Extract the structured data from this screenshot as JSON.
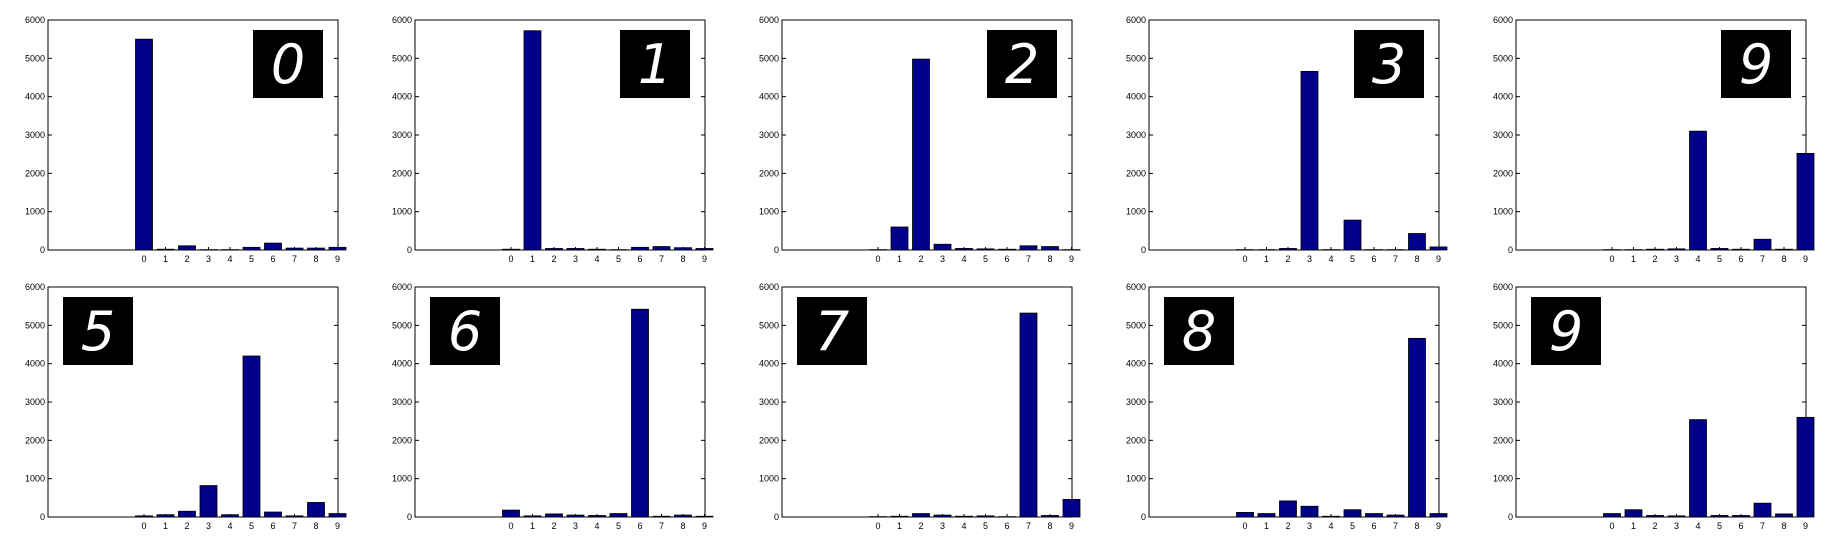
{
  "chart_data": [
    {
      "type": "bar",
      "categories": [
        "0",
        "1",
        "2",
        "3",
        "4",
        "5",
        "6",
        "7",
        "8",
        "9"
      ],
      "values": [
        5500,
        20,
        110,
        10,
        10,
        70,
        180,
        50,
        50,
        70
      ],
      "ylim": [
        0,
        6000
      ],
      "yticks": [
        0,
        1000,
        2000,
        3000,
        4000,
        5000,
        6000
      ],
      "inset_digit": "0",
      "inset_position": "top-right"
    },
    {
      "type": "bar",
      "categories": [
        "0",
        "1",
        "2",
        "3",
        "4",
        "5",
        "6",
        "7",
        "8",
        "9"
      ],
      "values": [
        20,
        5720,
        40,
        40,
        20,
        10,
        70,
        90,
        60,
        40
      ],
      "ylim": [
        0,
        6000
      ],
      "yticks": [
        0,
        1000,
        2000,
        3000,
        4000,
        5000,
        6000
      ],
      "inset_digit": "1",
      "inset_position": "top-right"
    },
    {
      "type": "bar",
      "categories": [
        "0",
        "1",
        "2",
        "3",
        "4",
        "5",
        "6",
        "7",
        "8",
        "9"
      ],
      "values": [
        10,
        600,
        4980,
        150,
        40,
        30,
        20,
        110,
        90,
        10
      ],
      "ylim": [
        0,
        6000
      ],
      "yticks": [
        0,
        1000,
        2000,
        3000,
        4000,
        5000,
        6000
      ],
      "inset_digit": "2",
      "inset_position": "top-right"
    },
    {
      "type": "bar",
      "categories": [
        "0",
        "1",
        "2",
        "3",
        "4",
        "5",
        "6",
        "7",
        "8",
        "9"
      ],
      "values": [
        10,
        10,
        40,
        4660,
        10,
        780,
        10,
        10,
        430,
        80
      ],
      "ylim": [
        0,
        6000
      ],
      "yticks": [
        0,
        1000,
        2000,
        3000,
        4000,
        5000,
        6000
      ],
      "inset_digit": "3",
      "inset_position": "top-right"
    },
    {
      "type": "bar",
      "categories": [
        "0",
        "1",
        "2",
        "3",
        "4",
        "5",
        "6",
        "7",
        "8",
        "9"
      ],
      "values": [
        10,
        10,
        20,
        30,
        3100,
        40,
        20,
        280,
        20,
        2520
      ],
      "ylim": [
        0,
        6000
      ],
      "yticks": [
        0,
        1000,
        2000,
        3000,
        4000,
        5000,
        6000
      ],
      "inset_digit": "9",
      "inset_position": "top-right"
    },
    {
      "type": "bar",
      "categories": [
        "0",
        "1",
        "2",
        "3",
        "4",
        "5",
        "6",
        "7",
        "8",
        "9"
      ],
      "values": [
        30,
        60,
        150,
        820,
        60,
        4200,
        130,
        30,
        380,
        90
      ],
      "ylim": [
        0,
        6000
      ],
      "yticks": [
        0,
        1000,
        2000,
        3000,
        4000,
        5000,
        6000
      ],
      "inset_digit": "5",
      "inset_position": "top-left"
    },
    {
      "type": "bar",
      "categories": [
        "0",
        "1",
        "2",
        "3",
        "4",
        "5",
        "6",
        "7",
        "8",
        "9"
      ],
      "values": [
        180,
        30,
        80,
        50,
        40,
        90,
        5420,
        20,
        50,
        20
      ],
      "ylim": [
        0,
        6000
      ],
      "yticks": [
        0,
        1000,
        2000,
        3000,
        4000,
        5000,
        6000
      ],
      "inset_digit": "6",
      "inset_position": "top-left"
    },
    {
      "type": "bar",
      "categories": [
        "0",
        "1",
        "2",
        "3",
        "4",
        "5",
        "6",
        "7",
        "8",
        "9"
      ],
      "values": [
        10,
        20,
        90,
        50,
        20,
        30,
        10,
        5320,
        40,
        460
      ],
      "ylim": [
        0,
        6000
      ],
      "yticks": [
        0,
        1000,
        2000,
        3000,
        4000,
        5000,
        6000
      ],
      "inset_digit": "7",
      "inset_position": "top-left"
    },
    {
      "type": "bar",
      "categories": [
        "0",
        "1",
        "2",
        "3",
        "4",
        "5",
        "6",
        "7",
        "8",
        "9"
      ],
      "values": [
        120,
        90,
        420,
        280,
        20,
        190,
        90,
        50,
        4660,
        90
      ],
      "ylim": [
        0,
        6000
      ],
      "yticks": [
        0,
        1000,
        2000,
        3000,
        4000,
        5000,
        6000
      ],
      "inset_digit": "8",
      "inset_position": "top-left"
    },
    {
      "type": "bar",
      "categories": [
        "0",
        "1",
        "2",
        "3",
        "4",
        "5",
        "6",
        "7",
        "8",
        "9"
      ],
      "values": [
        90,
        190,
        40,
        30,
        2540,
        40,
        40,
        360,
        80,
        2600
      ],
      "ylim": [
        0,
        6000
      ],
      "yticks": [
        0,
        1000,
        2000,
        3000,
        4000,
        5000,
        6000
      ],
      "inset_digit": "9",
      "inset_position": "top-left"
    }
  ],
  "colors": {
    "bar": "#00008b",
    "bar_edge": "#000000",
    "axes": "#000000",
    "inset_bg": "#000000",
    "digit": "#ffffff"
  }
}
